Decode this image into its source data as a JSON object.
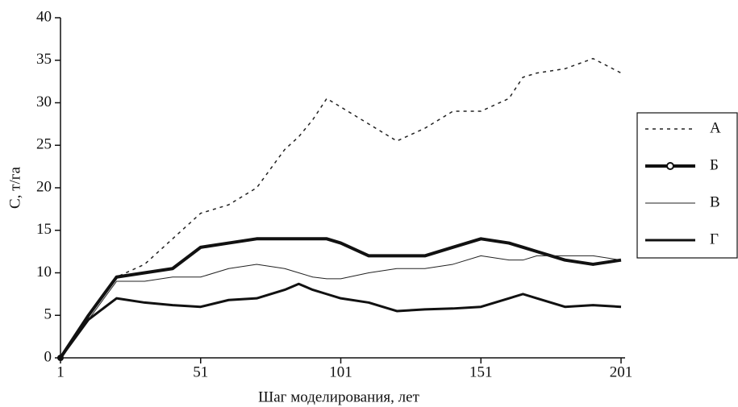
{
  "chart_data": {
    "type": "line",
    "x_label": "Шаг моделирования, лет",
    "y_label": "С, т/га",
    "x": [
      1,
      11,
      21,
      31,
      41,
      51,
      61,
      71,
      81,
      86,
      91,
      96,
      101,
      111,
      121,
      131,
      141,
      151,
      161,
      166,
      171,
      181,
      191,
      201
    ],
    "series": [
      {
        "name": "А",
        "color": "#222222",
        "width": 1.5,
        "dash": "4,5",
        "values": [
          0,
          5,
          9.5,
          11,
          14,
          17,
          18,
          20,
          24.5,
          26,
          28,
          30.5,
          29.5,
          27.5,
          25.5,
          27,
          29,
          29,
          30.5,
          33,
          33.5,
          34,
          35.2,
          33.5
        ]
      },
      {
        "name": "Б",
        "color": "#111111",
        "width": 4,
        "marker": "circle",
        "values": [
          0,
          5,
          9.5,
          10,
          10.5,
          13,
          13.5,
          14,
          14,
          14,
          14,
          14,
          13.5,
          12,
          12,
          12,
          13,
          14,
          13.5,
          13,
          12.5,
          11.5,
          11,
          11.5
        ]
      },
      {
        "name": "В",
        "color": "#222222",
        "width": 1,
        "values": [
          0,
          4.5,
          9,
          9,
          9.5,
          9.5,
          10.5,
          11,
          10.5,
          10,
          9.5,
          9.3,
          9.3,
          10,
          10.5,
          10.5,
          11,
          12,
          11.5,
          11.5,
          12,
          12,
          12,
          11.5
        ]
      },
      {
        "name": "Г",
        "color": "#111111",
        "width": 3,
        "values": [
          0,
          4.5,
          7,
          6.5,
          6.2,
          6,
          6.8,
          7,
          8,
          8.7,
          8,
          7.5,
          7,
          6.5,
          5.5,
          5.7,
          5.8,
          6,
          7,
          7.5,
          7,
          6,
          6.2,
          6
        ]
      }
    ],
    "xlim": [
      1,
      201
    ],
    "xticks": [
      1,
      51,
      101,
      151,
      201
    ],
    "ylim": [
      0,
      40
    ],
    "yticks": [
      0,
      5,
      10,
      15,
      20,
      25,
      30,
      35,
      40
    ],
    "legend": "right"
  }
}
